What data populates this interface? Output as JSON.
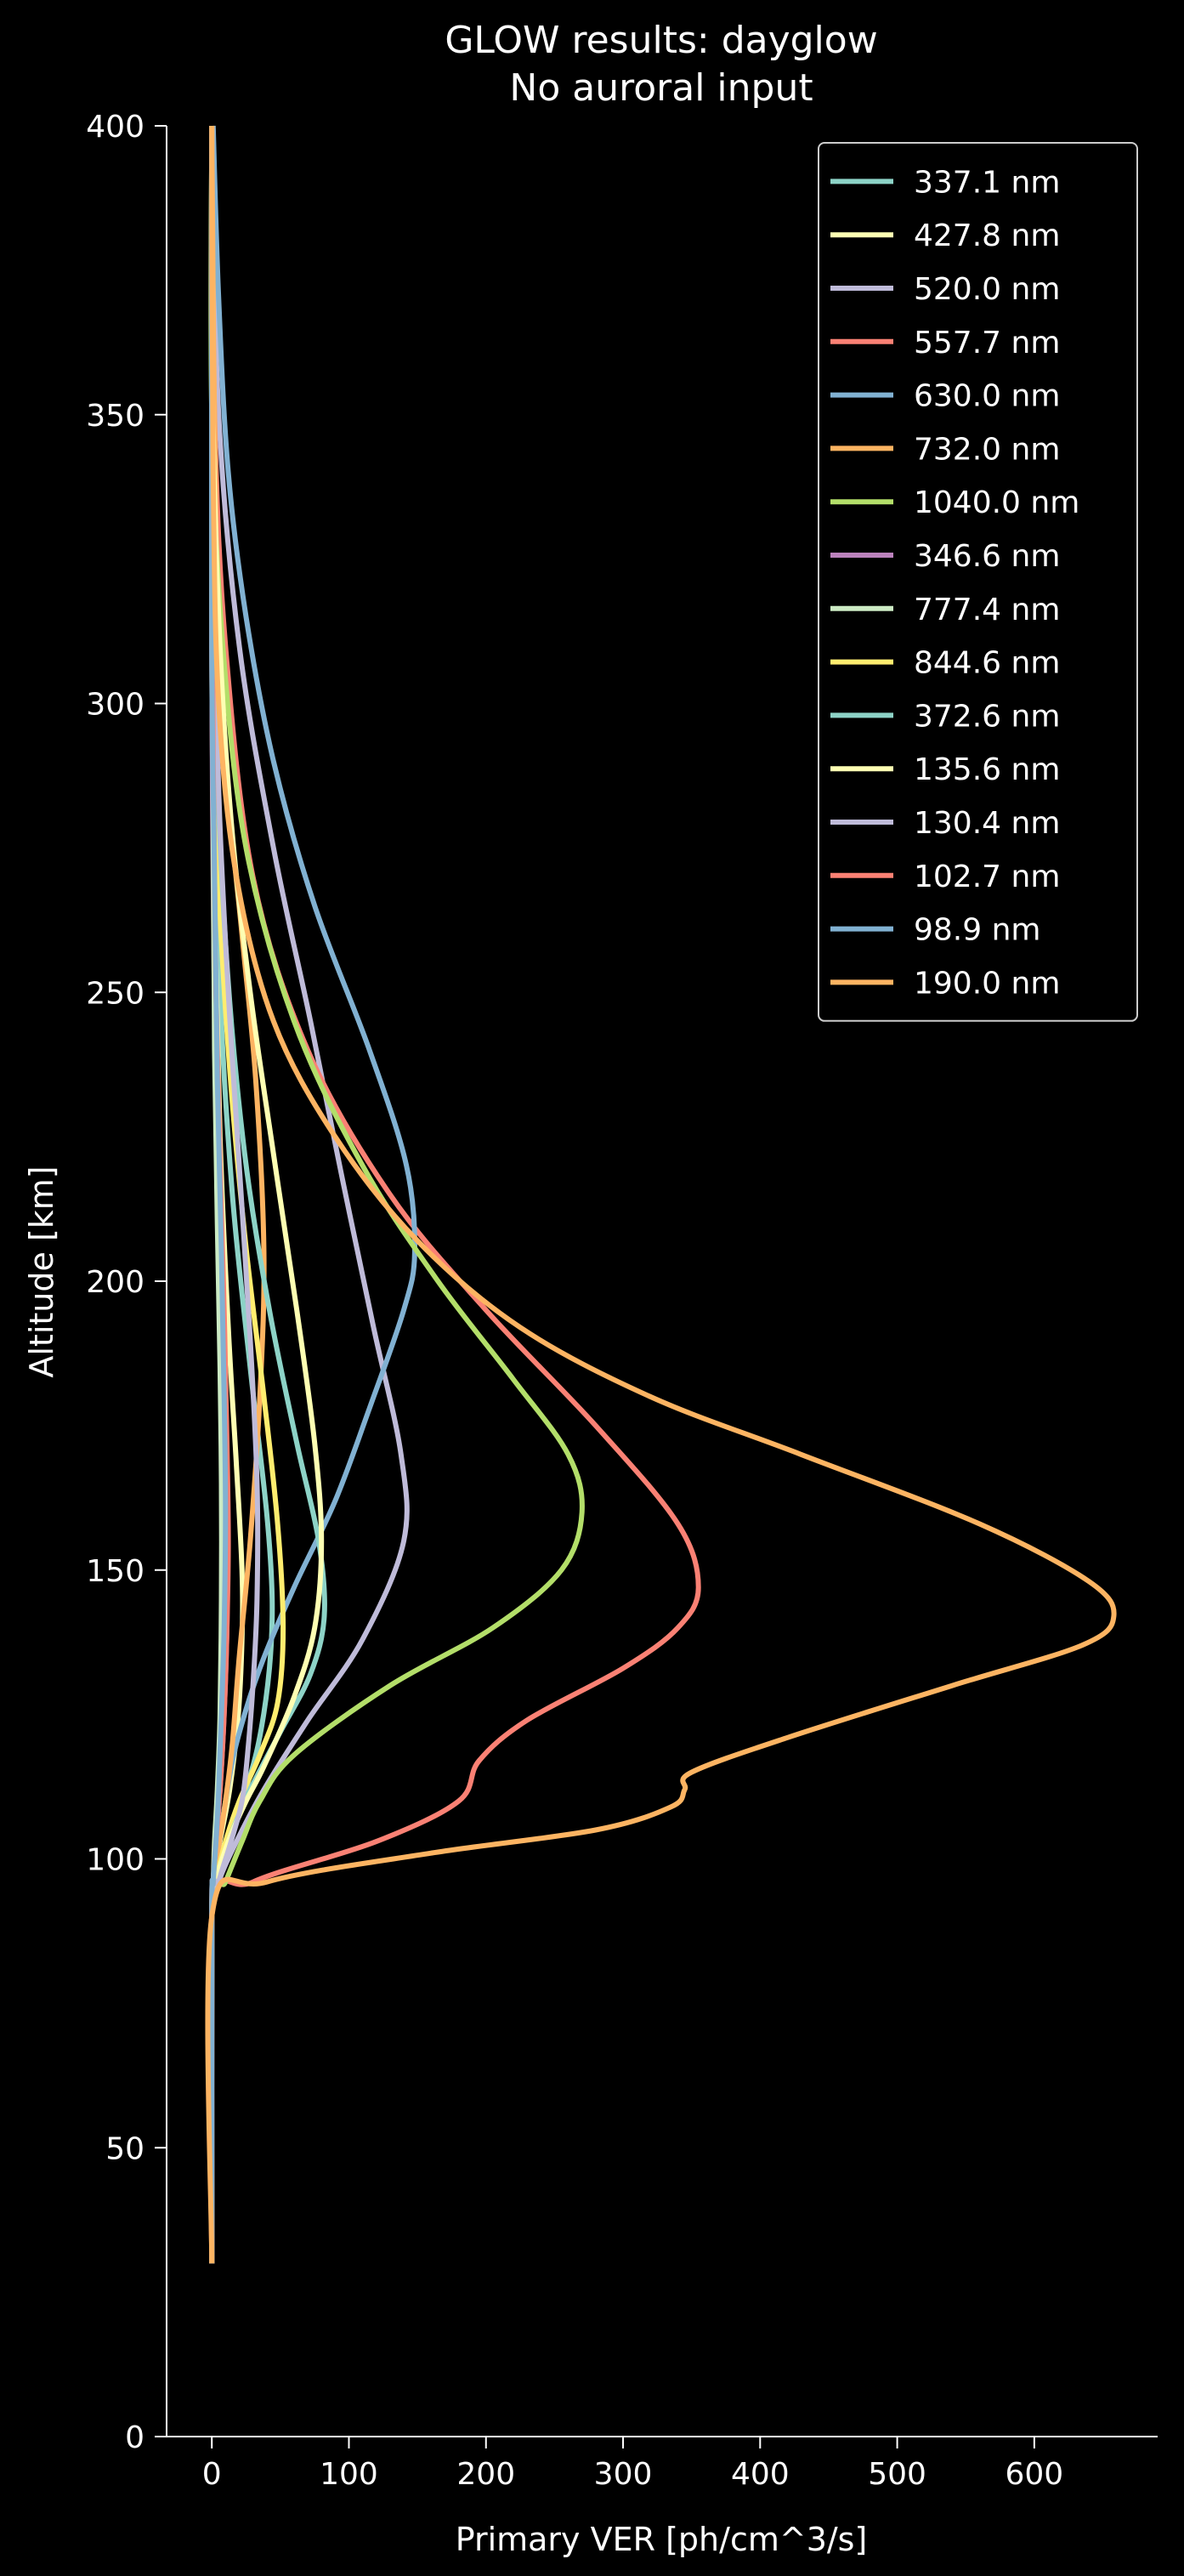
{
  "chart_data": {
    "type": "line",
    "title": "GLOW results: dayglow",
    "subtitle": "No auroral input",
    "xlabel": "Primary VER [ph/cm^3/s]",
    "ylabel": "Altitude [km]",
    "xlim": [
      -33,
      690
    ],
    "ylim": [
      0,
      400
    ],
    "xticks": [
      0,
      100,
      200,
      300,
      400,
      500,
      600
    ],
    "xtick_labels": [
      "0",
      "100",
      "200",
      "300",
      "400",
      "500",
      "600"
    ],
    "yticks": [
      0,
      50,
      100,
      150,
      200,
      250,
      300,
      350,
      400
    ],
    "ytick_labels": [
      "0",
      "50",
      "100",
      "150",
      "200",
      "250",
      "300",
      "350",
      "400"
    ],
    "grid": false,
    "legend_position": "top-right",
    "background": "#000000",
    "series": [
      {
        "name": "337.1 nm",
        "color": "#8dd3c7",
        "points": [
          [
            0,
            30
          ],
          [
            0,
            90
          ],
          [
            3,
            96
          ],
          [
            10,
            102
          ],
          [
            22,
            110
          ],
          [
            34,
            120
          ],
          [
            42,
            133
          ],
          [
            44,
            145
          ],
          [
            40,
            160
          ],
          [
            28,
            185
          ],
          [
            15,
            215
          ],
          [
            6,
            250
          ],
          [
            2,
            290
          ],
          [
            0,
            330
          ],
          [
            0,
            400
          ]
        ]
      },
      {
        "name": "427.8 nm",
        "color": "#feffb3",
        "points": [
          [
            0,
            30
          ],
          [
            0,
            90
          ],
          [
            2,
            96
          ],
          [
            6,
            103
          ],
          [
            13,
            112
          ],
          [
            19,
            124
          ],
          [
            22,
            138
          ],
          [
            22,
            150
          ],
          [
            18,
            168
          ],
          [
            12,
            192
          ],
          [
            6,
            225
          ],
          [
            2,
            265
          ],
          [
            0,
            310
          ],
          [
            0,
            400
          ]
        ]
      },
      {
        "name": "520.0 nm",
        "color": "#bfbbd9",
        "points": [
          [
            0,
            30
          ],
          [
            0,
            90
          ],
          [
            5,
            96
          ],
          [
            18,
            103
          ],
          [
            38,
            112
          ],
          [
            70,
            124
          ],
          [
            110,
            138
          ],
          [
            140,
            155
          ],
          [
            138,
            170
          ],
          [
            118,
            192
          ],
          [
            95,
            218
          ],
          [
            72,
            245
          ],
          [
            45,
            275
          ],
          [
            20,
            310
          ],
          [
            5,
            350
          ],
          [
            0,
            400
          ]
        ]
      },
      {
        "name": "557.7 nm",
        "color": "#fa8174",
        "points": [
          [
            0,
            30
          ],
          [
            0,
            90
          ],
          [
            30,
            96
          ],
          [
            120,
            103
          ],
          [
            180,
            110
          ],
          [
            195,
            117
          ],
          [
            230,
            124
          ],
          [
            300,
            133
          ],
          [
            340,
            140
          ],
          [
            355,
            147
          ],
          [
            340,
            158
          ],
          [
            280,
            175
          ],
          [
            200,
            195
          ],
          [
            130,
            215
          ],
          [
            70,
            240
          ],
          [
            30,
            270
          ],
          [
            10,
            310
          ],
          [
            2,
            350
          ],
          [
            0,
            400
          ]
        ]
      },
      {
        "name": "630.0 nm",
        "color": "#81b1d2",
        "points": [
          [
            0,
            30
          ],
          [
            0,
            90
          ],
          [
            2,
            96
          ],
          [
            5,
            102
          ],
          [
            10,
            110
          ],
          [
            18,
            120
          ],
          [
            35,
            133
          ],
          [
            60,
            147
          ],
          [
            90,
            162
          ],
          [
            115,
            178
          ],
          [
            140,
            195
          ],
          [
            148,
            205
          ],
          [
            142,
            220
          ],
          [
            115,
            240
          ],
          [
            75,
            265
          ],
          [
            45,
            290
          ],
          [
            25,
            315
          ],
          [
            12,
            340
          ],
          [
            5,
            370
          ],
          [
            1,
            400
          ]
        ]
      },
      {
        "name": "732.0 nm",
        "color": "#fdb462",
        "points": [
          [
            0,
            30
          ],
          [
            0,
            90
          ],
          [
            2,
            96
          ],
          [
            5,
            102
          ],
          [
            10,
            110
          ],
          [
            15,
            120
          ],
          [
            20,
            135
          ],
          [
            28,
            155
          ],
          [
            35,
            180
          ],
          [
            38,
            205
          ],
          [
            32,
            235
          ],
          [
            22,
            260
          ],
          [
            10,
            290
          ],
          [
            3,
            330
          ],
          [
            0,
            400
          ]
        ]
      },
      {
        "name": "1040.0 nm",
        "color": "#b3de69",
        "points": [
          [
            0,
            30
          ],
          [
            0,
            90
          ],
          [
            10,
            96
          ],
          [
            22,
            103
          ],
          [
            35,
            110
          ],
          [
            60,
            118
          ],
          [
            130,
            130
          ],
          [
            205,
            140
          ],
          [
            255,
            150
          ],
          [
            270,
            160
          ],
          [
            260,
            170
          ],
          [
            220,
            183
          ],
          [
            165,
            200
          ],
          [
            110,
            220
          ],
          [
            60,
            245
          ],
          [
            25,
            275
          ],
          [
            8,
            310
          ],
          [
            0,
            350
          ],
          [
            0,
            400
          ]
        ]
      },
      {
        "name": "346.6 nm",
        "color": "#bc82bd",
        "points": [
          [
            0,
            30
          ],
          [
            0,
            90
          ],
          [
            1,
            96
          ],
          [
            3,
            103
          ],
          [
            6,
            112
          ],
          [
            9,
            125
          ],
          [
            11,
            140
          ],
          [
            11,
            155
          ],
          [
            9,
            175
          ],
          [
            6,
            200
          ],
          [
            3,
            230
          ],
          [
            1,
            270
          ],
          [
            0,
            310
          ],
          [
            0,
            400
          ]
        ]
      },
      {
        "name": "777.4 nm",
        "color": "#ccebc4",
        "points": [
          [
            0,
            30
          ],
          [
            0,
            90
          ],
          [
            1,
            96
          ],
          [
            2,
            103
          ],
          [
            4,
            112
          ],
          [
            6,
            125
          ],
          [
            7,
            145
          ],
          [
            7,
            165
          ],
          [
            6,
            185
          ],
          [
            4,
            210
          ],
          [
            2,
            240
          ],
          [
            1,
            280
          ],
          [
            0,
            320
          ],
          [
            0,
            400
          ]
        ]
      },
      {
        "name": "844.6 nm",
        "color": "#ffed6f",
        "points": [
          [
            0,
            30
          ],
          [
            0,
            90
          ],
          [
            3,
            96
          ],
          [
            10,
            103
          ],
          [
            20,
            110
          ],
          [
            35,
            118
          ],
          [
            48,
            127
          ],
          [
            52,
            140
          ],
          [
            48,
            158
          ],
          [
            38,
            180
          ],
          [
            24,
            208
          ],
          [
            12,
            240
          ],
          [
            4,
            275
          ],
          [
            1,
            320
          ],
          [
            0,
            400
          ]
        ]
      },
      {
        "name": "372.6 nm",
        "color": "#8dd3c7",
        "points": [
          [
            0,
            30
          ],
          [
            0,
            90
          ],
          [
            4,
            96
          ],
          [
            12,
            103
          ],
          [
            28,
            112
          ],
          [
            50,
            122
          ],
          [
            72,
            132
          ],
          [
            82,
            142
          ],
          [
            78,
            155
          ],
          [
            62,
            172
          ],
          [
            42,
            195
          ],
          [
            24,
            222
          ],
          [
            11,
            255
          ],
          [
            3,
            295
          ],
          [
            0,
            340
          ],
          [
            0,
            400
          ]
        ]
      },
      {
        "name": "135.6 nm",
        "color": "#feffb3",
        "points": [
          [
            0,
            30
          ],
          [
            0,
            90
          ],
          [
            3,
            96
          ],
          [
            12,
            103
          ],
          [
            25,
            110
          ],
          [
            38,
            116
          ],
          [
            60,
            128
          ],
          [
            75,
            140
          ],
          [
            80,
            155
          ],
          [
            75,
            172
          ],
          [
            62,
            195
          ],
          [
            45,
            222
          ],
          [
            28,
            250
          ],
          [
            14,
            280
          ],
          [
            5,
            315
          ],
          [
            0,
            360
          ],
          [
            0,
            400
          ]
        ]
      },
      {
        "name": "130.4 nm",
        "color": "#bfbbd9",
        "points": [
          [
            0,
            30
          ],
          [
            0,
            90
          ],
          [
            5,
            96
          ],
          [
            14,
            103
          ],
          [
            22,
            110
          ],
          [
            26,
            118
          ],
          [
            30,
            130
          ],
          [
            33,
            145
          ],
          [
            33,
            165
          ],
          [
            28,
            190
          ],
          [
            20,
            220
          ],
          [
            12,
            250
          ],
          [
            5,
            285
          ],
          [
            1,
            330
          ],
          [
            0,
            400
          ]
        ]
      },
      {
        "name": "102.7 nm",
        "color": "#fa8174",
        "points": [
          [
            0,
            30
          ],
          [
            0,
            90
          ],
          [
            1,
            96
          ],
          [
            3,
            103
          ],
          [
            6,
            112
          ],
          [
            9,
            125
          ],
          [
            11,
            140
          ],
          [
            12,
            155
          ],
          [
            11,
            172
          ],
          [
            9,
            195
          ],
          [
            6,
            220
          ],
          [
            3,
            250
          ],
          [
            1,
            290
          ],
          [
            0,
            340
          ],
          [
            0,
            400
          ]
        ]
      },
      {
        "name": "98.9 nm",
        "color": "#81b1d2",
        "points": [
          [
            0,
            30
          ],
          [
            0,
            90
          ],
          [
            1,
            96
          ],
          [
            3,
            103
          ],
          [
            5,
            112
          ],
          [
            7,
            125
          ],
          [
            9,
            140
          ],
          [
            10,
            160
          ],
          [
            9,
            180
          ],
          [
            7,
            205
          ],
          [
            4,
            235
          ],
          [
            2,
            270
          ],
          [
            0,
            310
          ],
          [
            0,
            400
          ]
        ]
      },
      {
        "name": "190.0 nm",
        "color": "#fdb462",
        "points": [
          [
            0,
            30
          ],
          [
            0,
            90
          ],
          [
            40,
            96
          ],
          [
            160,
            101
          ],
          [
            280,
            105
          ],
          [
            335,
            109
          ],
          [
            345,
            112
          ],
          [
            350,
            115
          ],
          [
            420,
            121
          ],
          [
            540,
            130
          ],
          [
            635,
            137
          ],
          [
            658,
            142
          ],
          [
            640,
            148
          ],
          [
            560,
            158
          ],
          [
            430,
            170
          ],
          [
            320,
            180
          ],
          [
            225,
            192
          ],
          [
            150,
            207
          ],
          [
            90,
            225
          ],
          [
            45,
            245
          ],
          [
            18,
            270
          ],
          [
            5,
            300
          ],
          [
            1,
            340
          ],
          [
            0,
            400
          ]
        ]
      }
    ]
  }
}
